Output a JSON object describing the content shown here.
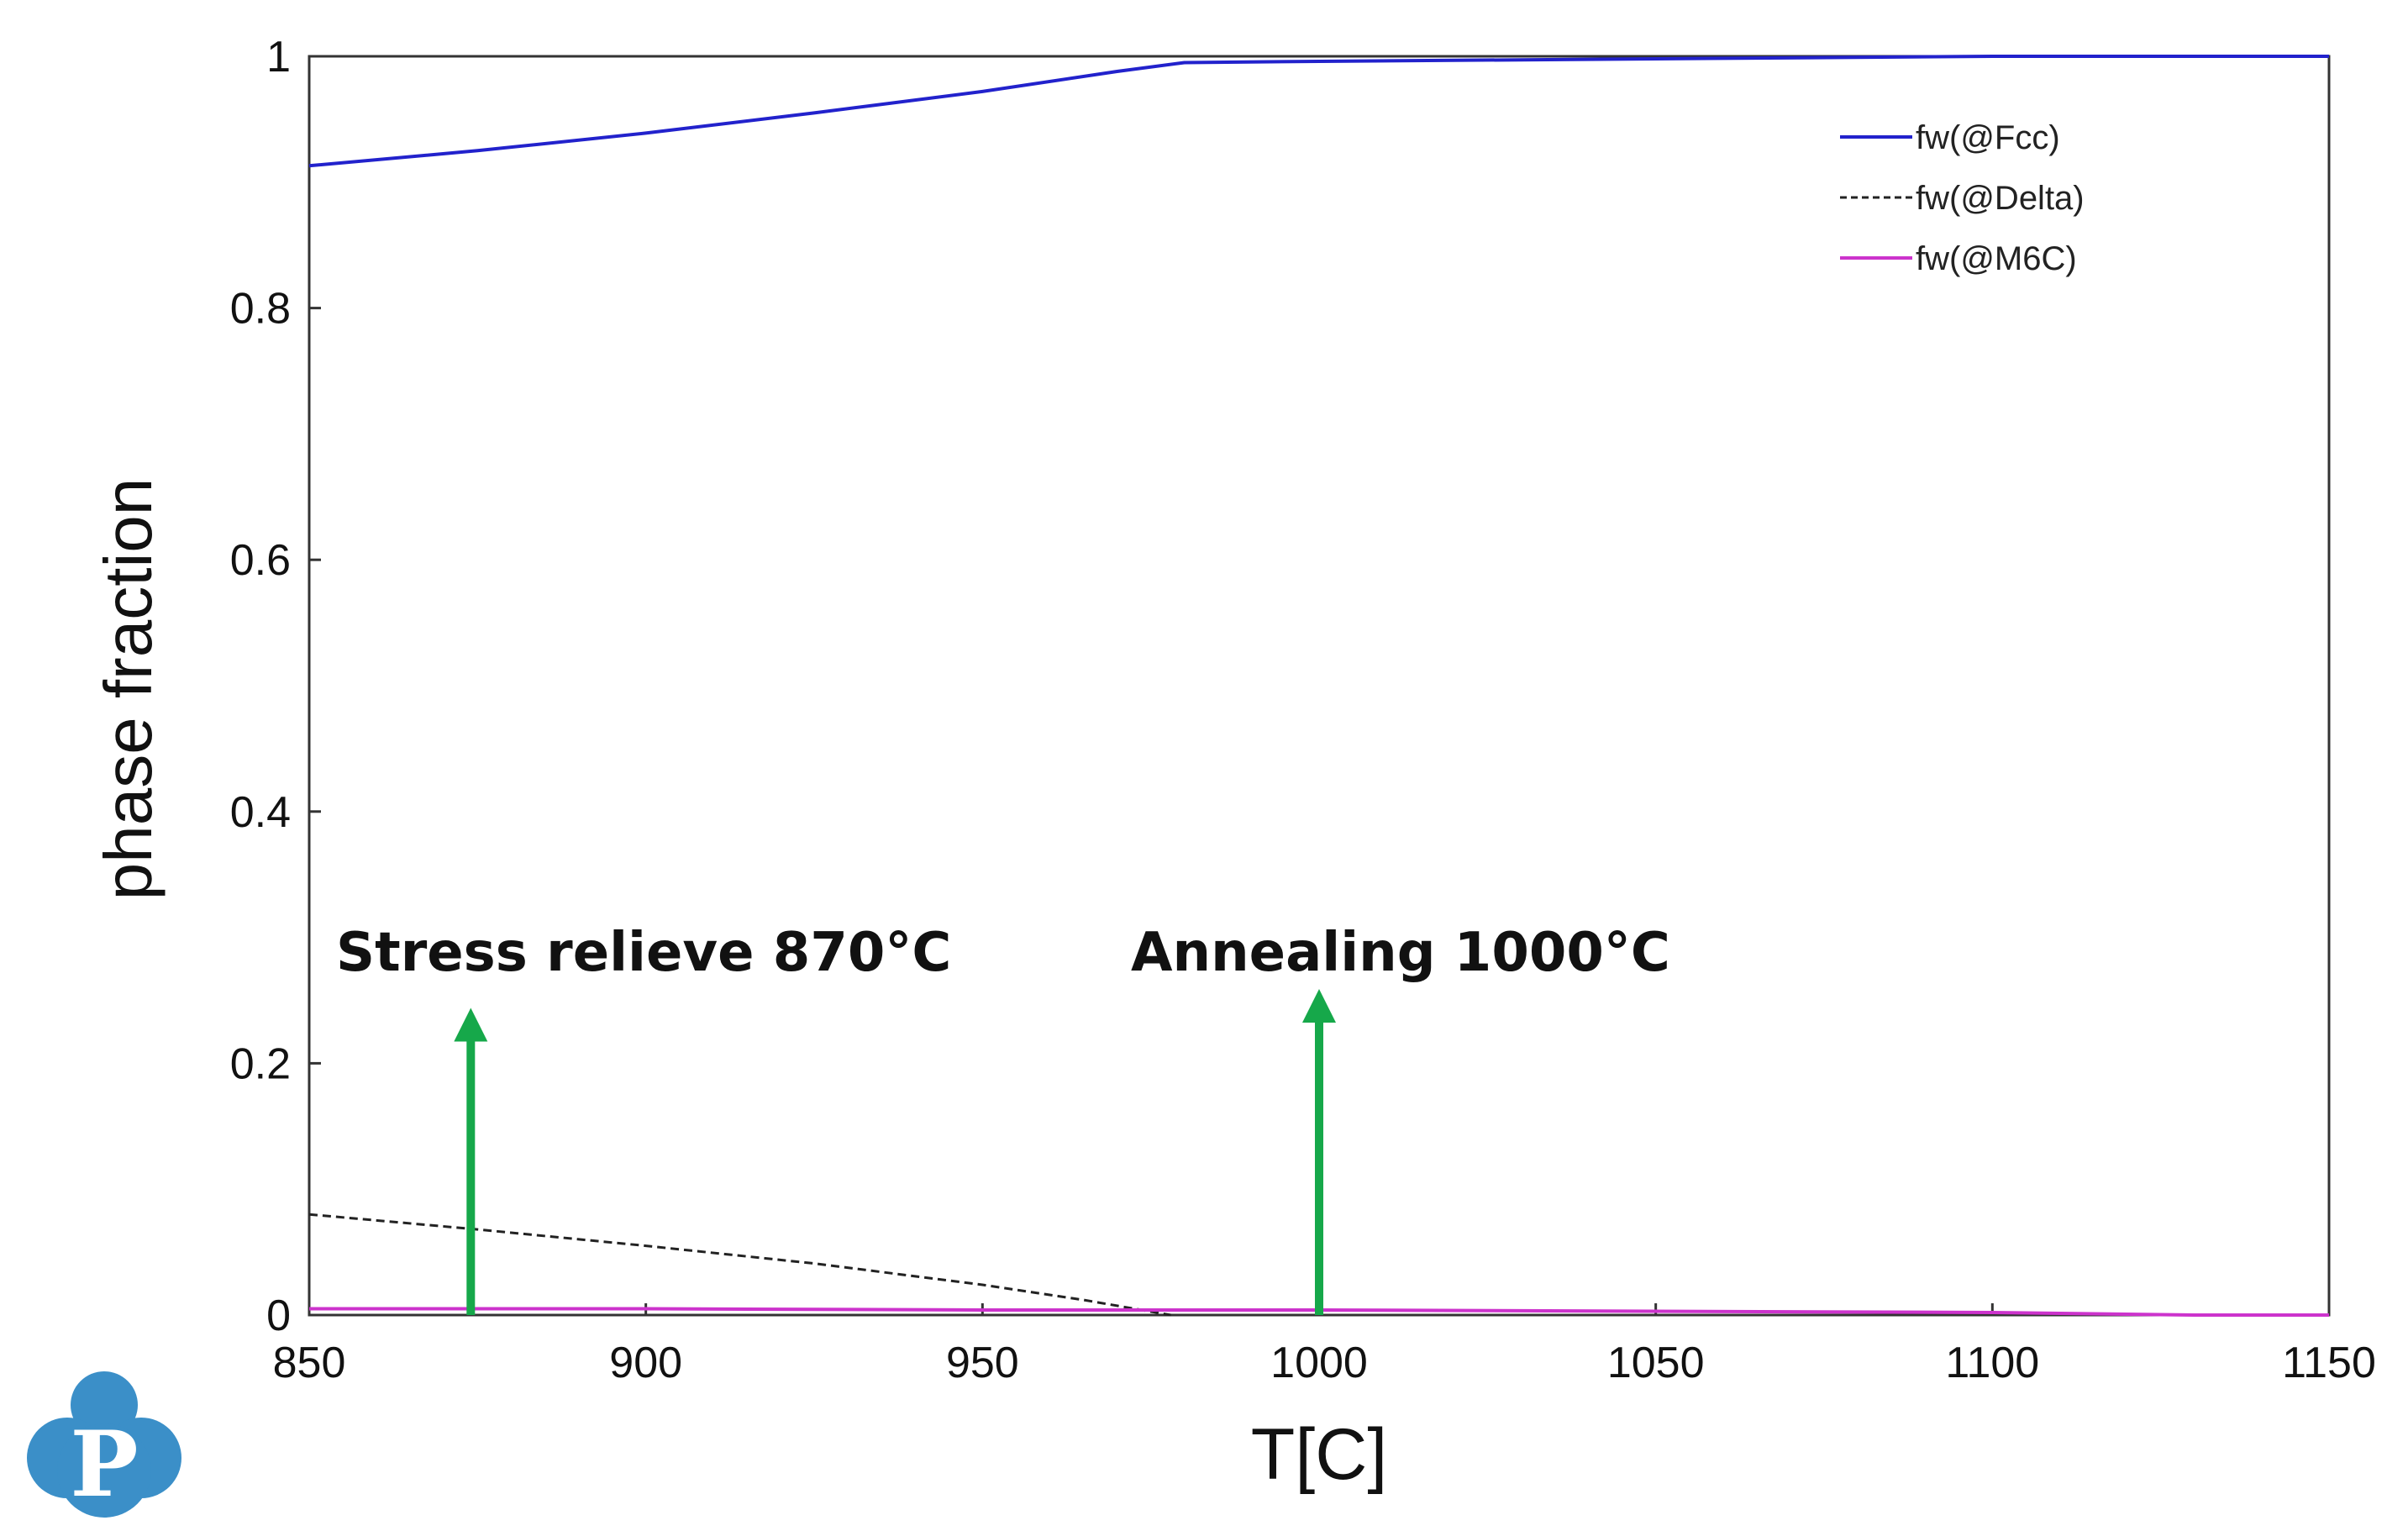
{
  "chart_data": {
    "type": "line",
    "title": "",
    "xlabel": "T[C]",
    "ylabel": "phase fraction",
    "xlim": [
      850,
      1150
    ],
    "ylim": [
      0,
      1
    ],
    "xticks": [
      "850",
      "900",
      "950",
      "1000",
      "1050",
      "1100",
      "1150"
    ],
    "yticks": [
      "0",
      "0.2",
      "0.4",
      "0.6",
      "0.8",
      "1"
    ],
    "grid": false,
    "legend_position": "top-right",
    "series": [
      {
        "name": "fw(@Fcc)",
        "color": "#2222cc",
        "style": "solid",
        "x": [
          850,
          875,
          900,
          925,
          950,
          970,
          980,
          1000,
          1050,
          1100,
          1150
        ],
        "y": [
          0.913,
          0.925,
          0.939,
          0.955,
          0.972,
          0.988,
          0.995,
          0.996,
          0.998,
          1.0,
          1.0
        ]
      },
      {
        "name": "fw(@Delta)",
        "color": "#222222",
        "style": "dashed",
        "x": [
          850,
          875,
          900,
          925,
          950,
          965,
          978
        ],
        "y": [
          0.08,
          0.068,
          0.055,
          0.041,
          0.024,
          0.012,
          0.0
        ]
      },
      {
        "name": "fw(@M6C)",
        "color": "#cc33cc",
        "style": "solid",
        "x": [
          850,
          900,
          950,
          1000,
          1050,
          1100,
          1130,
          1150
        ],
        "y": [
          0.005,
          0.005,
          0.004,
          0.004,
          0.003,
          0.002,
          0.0,
          0.0
        ]
      }
    ],
    "annotations": [
      {
        "text": "Stress relieve 870°C",
        "x": 874,
        "arrow_from_y": 0.0,
        "arrow_to_y": 0.24,
        "color": "#16a84a"
      },
      {
        "text": "Annealing  1000°C",
        "x": 1000,
        "arrow_from_y": 0.0,
        "arrow_to_y": 0.255,
        "color": "#16a84a"
      }
    ]
  },
  "logo": {
    "letter": "P",
    "color": "#3b8fc8"
  }
}
